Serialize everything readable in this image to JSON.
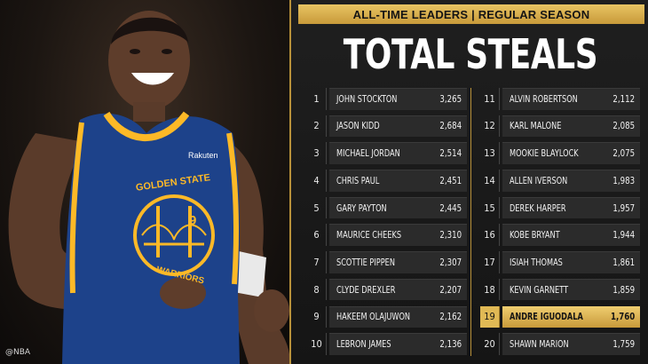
{
  "photo": {
    "watermark": "@NBA",
    "jersey_text": "GOLDEN STATE",
    "jersey_number": "9",
    "jersey_patch": "Rakuten",
    "jersey_bottom": "WARRIORS"
  },
  "header": {
    "banner": "ALL-TIME LEADERS | REGULAR SEASON",
    "title": "TOTAL STEALS"
  },
  "colors": {
    "gold": "#d4ab4a",
    "warriors_blue": "#1d428a",
    "warriors_yellow": "#fdb927"
  },
  "leaders": [
    {
      "rank": "1",
      "name": "JOHN STOCKTON",
      "steals": "3,265"
    },
    {
      "rank": "2",
      "name": "JASON KIDD",
      "steals": "2,684"
    },
    {
      "rank": "3",
      "name": "MICHAEL JORDAN",
      "steals": "2,514"
    },
    {
      "rank": "4",
      "name": "CHRIS PAUL",
      "steals": "2,451"
    },
    {
      "rank": "5",
      "name": "GARY PAYTON",
      "steals": "2,445"
    },
    {
      "rank": "6",
      "name": "MAURICE CHEEKS",
      "steals": "2,310"
    },
    {
      "rank": "7",
      "name": "SCOTTIE PIPPEN",
      "steals": "2,307"
    },
    {
      "rank": "8",
      "name": "CLYDE DREXLER",
      "steals": "2,207"
    },
    {
      "rank": "9",
      "name": "HAKEEM OLAJUWON",
      "steals": "2,162"
    },
    {
      "rank": "10",
      "name": "LEBRON JAMES",
      "steals": "2,136"
    },
    {
      "rank": "11",
      "name": "ALVIN ROBERTSON",
      "steals": "2,112"
    },
    {
      "rank": "12",
      "name": "KARL MALONE",
      "steals": "2,085"
    },
    {
      "rank": "13",
      "name": "MOOKIE BLAYLOCK",
      "steals": "2,075"
    },
    {
      "rank": "14",
      "name": "ALLEN IVERSON",
      "steals": "1,983"
    },
    {
      "rank": "15",
      "name": "DEREK HARPER",
      "steals": "1,957"
    },
    {
      "rank": "16",
      "name": "KOBE BRYANT",
      "steals": "1,944"
    },
    {
      "rank": "17",
      "name": "ISIAH THOMAS",
      "steals": "1,861"
    },
    {
      "rank": "18",
      "name": "KEVIN GARNETT",
      "steals": "1,859"
    },
    {
      "rank": "19",
      "name": "ANDRE IGUODALA",
      "steals": "1,760",
      "highlight": true
    },
    {
      "rank": "20",
      "name": "SHAWN MARION",
      "steals": "1,759"
    }
  ]
}
